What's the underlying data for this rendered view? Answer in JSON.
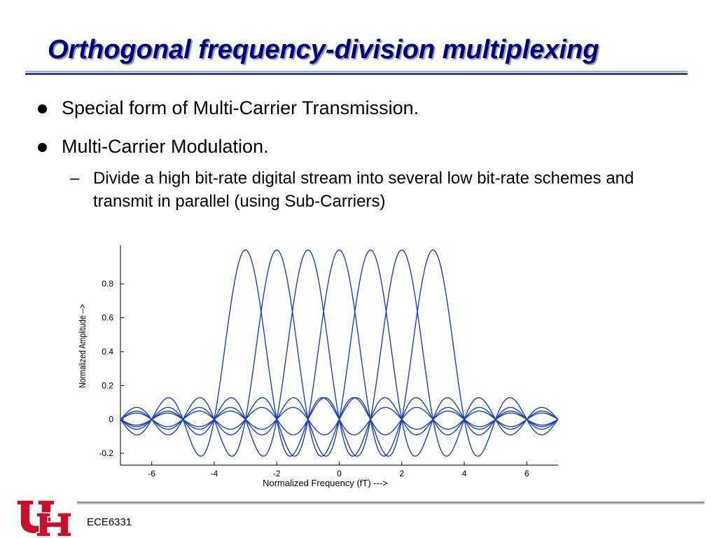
{
  "slide": {
    "title": "Orthogonal frequency-division multiplexing",
    "bullets": [
      "Special form of Multi-Carrier Transmission.",
      "Multi-Carrier Modulation."
    ],
    "sub_bullet_dash": "–",
    "sub_bullet": "Divide a high bit-rate digital stream into several low bit-rate schemes and transmit in parallel (using Sub-Carriers)",
    "footer": "ECE6331",
    "logo": "UH"
  },
  "colors": {
    "title": "#000080",
    "curve": "#1f3fbf",
    "logo": "#c8102e"
  },
  "chart_data": {
    "type": "line",
    "xlabel": "Normalized Frequency (fT) --->",
    "ylabel": "Normalized Amplitude -->",
    "xlim": [
      -7,
      7
    ],
    "ylim": [
      -0.27,
      1.02
    ],
    "xticks": [
      -6,
      -4,
      -2,
      0,
      2,
      4,
      6
    ],
    "yticks": [
      -0.2,
      0,
      0.2,
      0.4,
      0.6,
      0.8
    ],
    "ytick_labels": [
      "-0.2",
      "0",
      "0.2",
      "0.4",
      "0.6",
      "0.8"
    ],
    "series_function": "sinc(fT - k)",
    "carrier_centers": [
      -3,
      -2,
      -1,
      0,
      1,
      2,
      3
    ],
    "grid": false
  }
}
